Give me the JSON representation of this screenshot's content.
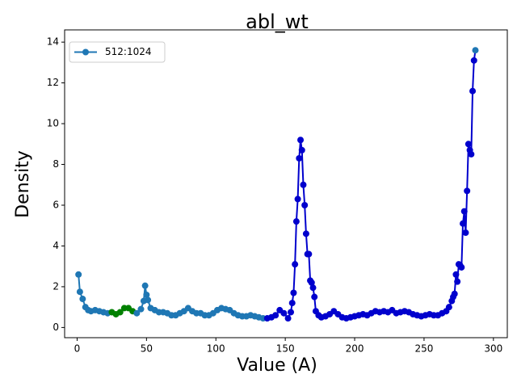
{
  "chart_data": {
    "type": "line",
    "title": "abl_wt",
    "xlabel": "Value (A)",
    "ylabel": "Density",
    "x": [
      1,
      2,
      4,
      6,
      8,
      10,
      13,
      16,
      19,
      22,
      25,
      28,
      31,
      34,
      37,
      40,
      43,
      46,
      48,
      49,
      50,
      51,
      53,
      56,
      59,
      62,
      65,
      68,
      71,
      74,
      77,
      80,
      83,
      86,
      89,
      92,
      95,
      98,
      101,
      104,
      107,
      110,
      113,
      116,
      119,
      122,
      125,
      128,
      131,
      134,
      137,
      140,
      143,
      146,
      149,
      152,
      154,
      155,
      156,
      157,
      158,
      159,
      160,
      161,
      162,
      163,
      164,
      165,
      166,
      167,
      168,
      169,
      170,
      171,
      172,
      174,
      176,
      179,
      182,
      185,
      188,
      191,
      194,
      197,
      200,
      203,
      206,
      209,
      212,
      215,
      218,
      221,
      224,
      227,
      230,
      233,
      236,
      239,
      242,
      245,
      248,
      251,
      254,
      257,
      260,
      263,
      266,
      268,
      270,
      271,
      272,
      273,
      274,
      275,
      276,
      277,
      278,
      279,
      280,
      281,
      282,
      283,
      284,
      285,
      286,
      287
    ],
    "series": [
      {
        "name": "512:1024",
        "color": "#1f77b4",
        "values": [
          2.6,
          1.75,
          1.4,
          1.0,
          0.85,
          0.8,
          0.85,
          0.8,
          0.75,
          0.7,
          0.75,
          0.65,
          0.75,
          0.95,
          0.95,
          0.8,
          0.7,
          0.9,
          1.3,
          2.05,
          1.6,
          1.35,
          0.95,
          0.85,
          0.75,
          0.75,
          0.7,
          0.6,
          0.6,
          0.7,
          0.8,
          0.95,
          0.8,
          0.7,
          0.7,
          0.6,
          0.6,
          0.7,
          0.85,
          0.95,
          0.9,
          0.85,
          0.7,
          0.6,
          0.55,
          0.55,
          0.6,
          0.55,
          0.5,
          0.45,
          0.45,
          0.5,
          0.6,
          0.85,
          0.7,
          0.45,
          0.75,
          1.2,
          1.7,
          3.1,
          5.2,
          6.3,
          8.3,
          9.2,
          8.7,
          7.0,
          6.0,
          4.6,
          3.6,
          3.6,
          2.3,
          2.2,
          1.95,
          1.5,
          0.8,
          0.6,
          0.5,
          0.55,
          0.65,
          0.8,
          0.65,
          0.5,
          0.45,
          0.5,
          0.55,
          0.6,
          0.65,
          0.6,
          0.7,
          0.8,
          0.75,
          0.8,
          0.75,
          0.85,
          0.7,
          0.75,
          0.8,
          0.75,
          0.65,
          0.6,
          0.55,
          0.6,
          0.65,
          0.6,
          0.6,
          0.7,
          0.8,
          1.0,
          1.3,
          1.5,
          1.65,
          2.6,
          2.25,
          3.1,
          3.05,
          2.95,
          5.1,
          5.7,
          4.65,
          6.7,
          9.0,
          8.7,
          8.5,
          11.6,
          13.1,
          13.6
        ]
      }
    ],
    "highlight_ranges": [
      {
        "color": "#008000",
        "xlim": [
          25,
          40
        ]
      },
      {
        "color": "#0000cd",
        "xlim": [
          135,
          286
        ]
      }
    ],
    "xlim": [
      -9,
      310
    ],
    "xticks": [
      0,
      50,
      100,
      150,
      200,
      250,
      300
    ],
    "ylim": [
      -0.5,
      14.6
    ],
    "yticks": [
      0,
      2,
      4,
      6,
      8,
      10,
      12,
      14
    ],
    "legend": "upper left"
  }
}
